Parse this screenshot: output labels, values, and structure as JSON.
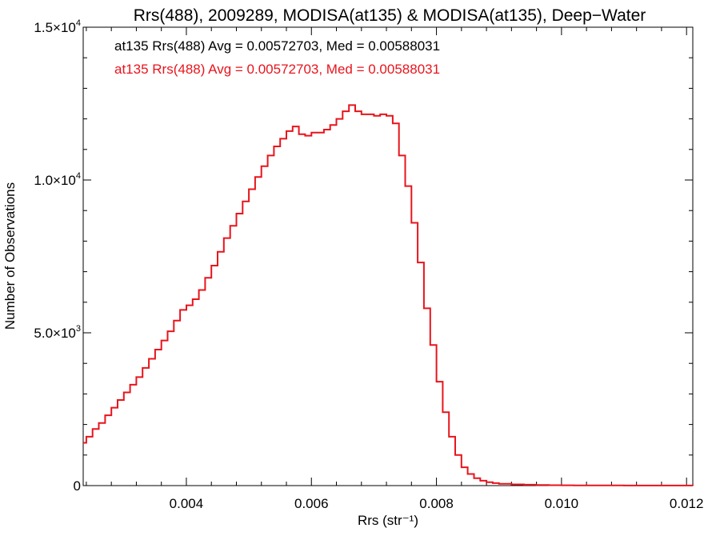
{
  "chart_data": {
    "type": "line",
    "title": "Rrs(488), 2009289, MODISA(at135) & MODISA(at135), Deep−Water",
    "xlabel": "Rrs (str⁻¹)",
    "ylabel": "Number of Observations",
    "xlim": [
      0.00235,
      0.0121
    ],
    "ylim": [
      0,
      15000
    ],
    "x_ticks": [
      0.004,
      0.006,
      0.008,
      0.01,
      0.012
    ],
    "x_tick_labels": [
      "0.004",
      "0.006",
      "0.008",
      "0.010",
      "0.012"
    ],
    "y_ticks": [
      0,
      5000,
      10000,
      15000
    ],
    "y_tick_labels": [
      {
        "mant": "0",
        "exp": ""
      },
      {
        "mant": "5.0×10",
        "exp": "3"
      },
      {
        "mant": "1.0×10",
        "exp": "4"
      },
      {
        "mant": "1.5×10",
        "exp": "4"
      }
    ],
    "grid": false,
    "annotations": [
      {
        "text": "at135 Rrs(488) Avg = 0.00572703, Med = 0.00588031",
        "color": "#000000"
      },
      {
        "text": "at135 Rrs(488) Avg = 0.00572703, Med = 0.00588031",
        "color": "#e8141c"
      }
    ],
    "series": [
      {
        "color": "#e8141c",
        "x": [
          0.00235,
          0.0024,
          0.0025,
          0.0026,
          0.0027,
          0.0028,
          0.0029,
          0.003,
          0.0031,
          0.0032,
          0.0033,
          0.0034,
          0.0035,
          0.0036,
          0.0037,
          0.0038,
          0.0039,
          0.004,
          0.0041,
          0.0042,
          0.0043,
          0.0044,
          0.0045,
          0.0046,
          0.0047,
          0.0048,
          0.0049,
          0.005,
          0.0051,
          0.0052,
          0.0053,
          0.0054,
          0.0055,
          0.0056,
          0.0057,
          0.0058,
          0.0059,
          0.006,
          0.0061,
          0.0062,
          0.0063,
          0.0064,
          0.0065,
          0.0066,
          0.0067,
          0.0068,
          0.0069,
          0.007,
          0.0071,
          0.0072,
          0.0073,
          0.0074,
          0.0075,
          0.0076,
          0.0077,
          0.0078,
          0.0079,
          0.008,
          0.0081,
          0.0082,
          0.0083,
          0.0084,
          0.0085,
          0.0086,
          0.0087,
          0.0088,
          0.0089,
          0.009,
          0.0092,
          0.0094,
          0.0096,
          0.0098,
          0.01,
          0.0102,
          0.0104,
          0.0106,
          0.0108,
          0.011,
          0.0115,
          0.0121
        ],
        "y": [
          1400,
          1600,
          1850,
          2050,
          2300,
          2550,
          2800,
          3050,
          3300,
          3550,
          3850,
          4150,
          4450,
          4750,
          5050,
          5400,
          5750,
          5900,
          6100,
          6400,
          6800,
          7200,
          7650,
          8100,
          8500,
          8900,
          9300,
          9700,
          10100,
          10450,
          10800,
          11100,
          11350,
          11600,
          11750,
          11500,
          11450,
          11550,
          11550,
          11650,
          11800,
          12000,
          12250,
          12450,
          12250,
          12150,
          12150,
          12100,
          12150,
          12100,
          11850,
          10800,
          9800,
          8600,
          7300,
          5800,
          4600,
          3400,
          2400,
          1600,
          1000,
          600,
          380,
          240,
          160,
          110,
          80,
          60,
          40,
          30,
          20,
          14,
          10,
          8,
          6,
          5,
          4,
          3,
          2,
          1
        ]
      }
    ]
  }
}
